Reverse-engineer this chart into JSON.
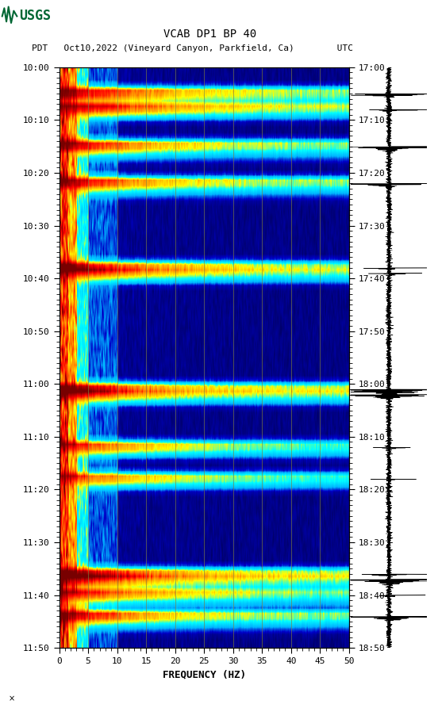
{
  "title_line1": "VCAB DP1 BP 40",
  "title_line2": "PDT   Oct10,2022 (Vineyard Canyon, Parkfield, Ca)        UTC",
  "xlabel": "FREQUENCY (HZ)",
  "freq_min": 0,
  "freq_max": 50,
  "left_ytick_labels": [
    "10:00",
    "10:10",
    "10:20",
    "10:30",
    "10:40",
    "10:50",
    "11:00",
    "11:10",
    "11:20",
    "11:30",
    "11:40",
    "11:50"
  ],
  "right_ytick_labels": [
    "17:00",
    "17:10",
    "17:20",
    "17:30",
    "17:40",
    "17:50",
    "18:00",
    "18:10",
    "18:20",
    "18:30",
    "18:40",
    "18:50"
  ],
  "xtick_positions": [
    0,
    5,
    10,
    15,
    20,
    25,
    30,
    35,
    40,
    45,
    50
  ],
  "xtick_labels": [
    "0",
    "5",
    "10",
    "15",
    "20",
    "25",
    "30",
    "35",
    "40",
    "45",
    "50"
  ],
  "vertical_grid_freqs": [
    5,
    10,
    15,
    20,
    25,
    30,
    35,
    40,
    45
  ],
  "background_color": "#ffffff",
  "fig_width": 5.52,
  "fig_height": 8.93,
  "dpi": 100,
  "usgs_logo_color": "#006633",
  "font_size_title": 10,
  "font_size_labels": 9,
  "font_size_ticks": 8,
  "event_times_min": [
    5,
    8,
    15,
    22,
    38,
    39,
    61,
    62,
    72,
    78,
    96,
    97,
    100,
    104
  ],
  "n_time_minutes": 110,
  "n_freq_bins": 400
}
